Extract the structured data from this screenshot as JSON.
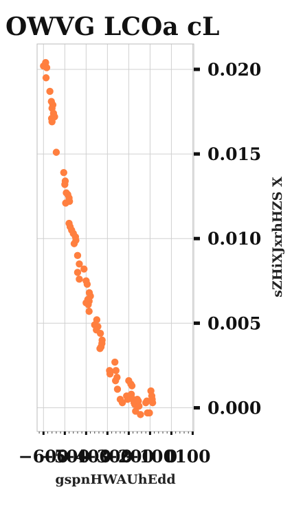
{
  "chart_data": {
    "type": "scatter",
    "title": "OWVG LCOa cL",
    "xlabel": "gspnHWAUhEdd",
    "ylabel": "sZHiXJxrhHZS X",
    "xlim": [
      -630,
      105
    ],
    "ylim": [
      -0.0014,
      0.0215
    ],
    "x_ticks": [
      -600,
      -500,
      -400,
      -300,
      -200,
      -100,
      0,
      100
    ],
    "x_tick_labels": [
      "−600",
      "−500",
      "−400",
      "−300",
      "−200",
      "−100",
      "0",
      "100"
    ],
    "y_ticks": [
      0.0,
      0.005,
      0.01,
      0.015,
      0.02
    ],
    "y_tick_labels": [
      "0.000",
      "0.005",
      "0.010",
      "0.015",
      "0.020"
    ],
    "y_axis_side": "right",
    "grid": true,
    "marker_color": "#ff7f3f",
    "points": [
      [
        -600,
        0.0202
      ],
      [
        -590,
        0.0204
      ],
      [
        -585,
        0.0201
      ],
      [
        -588,
        0.0195
      ],
      [
        -570,
        0.0187
      ],
      [
        -563,
        0.0181
      ],
      [
        -556,
        0.0179
      ],
      [
        -560,
        0.0177
      ],
      [
        -553,
        0.0174
      ],
      [
        -548,
        0.0172
      ],
      [
        -562,
        0.0171
      ],
      [
        -560,
        0.0169
      ],
      [
        -540,
        0.0151
      ],
      [
        -505,
        0.0139
      ],
      [
        -498,
        0.0134
      ],
      [
        -500,
        0.0132
      ],
      [
        -493,
        0.0127
      ],
      [
        -486,
        0.0126
      ],
      [
        -480,
        0.0124
      ],
      [
        -478,
        0.0122
      ],
      [
        -496,
        0.0121
      ],
      [
        -480,
        0.0109
      ],
      [
        -475,
        0.0107
      ],
      [
        -468,
        0.0105
      ],
      [
        -460,
        0.0103
      ],
      [
        -450,
        0.0101
      ],
      [
        -448,
        0.0099
      ],
      [
        -456,
        0.0097
      ],
      [
        -440,
        0.009
      ],
      [
        -432,
        0.0085
      ],
      [
        -440,
        0.008
      ],
      [
        -432,
        0.0076
      ],
      [
        -410,
        0.0082
      ],
      [
        -400,
        0.0075
      ],
      [
        -395,
        0.0073
      ],
      [
        -385,
        0.0068
      ],
      [
        -380,
        0.0066
      ],
      [
        -392,
        0.0064
      ],
      [
        -386,
        0.0063
      ],
      [
        -400,
        0.0062
      ],
      [
        -390,
        0.0061
      ],
      [
        -386,
        0.0057
      ],
      [
        -360,
        0.0049
      ],
      [
        -350,
        0.0052
      ],
      [
        -345,
        0.0048
      ],
      [
        -352,
        0.0046
      ],
      [
        -333,
        0.0044
      ],
      [
        -325,
        0.004
      ],
      [
        -326,
        0.0038
      ],
      [
        -335,
        0.0035
      ],
      [
        -330,
        0.0036
      ],
      [
        -290,
        0.0022
      ],
      [
        -288,
        0.002
      ],
      [
        -265,
        0.0027
      ],
      [
        -260,
        0.0022
      ],
      [
        -255,
        0.0018
      ],
      [
        -262,
        0.0016
      ],
      [
        -253,
        0.0011
      ],
      [
        -240,
        0.0005
      ],
      [
        -230,
        0.0003
      ],
      [
        -210,
        0.0007
      ],
      [
        -205,
        0.0005
      ],
      [
        -200,
        0.0016
      ],
      [
        -190,
        0.0014
      ],
      [
        -185,
        0.0013
      ],
      [
        -188,
        0.0008
      ],
      [
        -180,
        0.0005
      ],
      [
        -175,
        0.0003
      ],
      [
        -172,
        0.0002
      ],
      [
        -168,
        -0.0002
      ],
      [
        -160,
        0.0005
      ],
      [
        -155,
        0.0004
      ],
      [
        -152,
        0.0001
      ],
      [
        -145,
        -0.0004
      ],
      [
        -120,
        0.0003
      ],
      [
        -115,
        0.0004
      ],
      [
        -112,
        -0.0003
      ],
      [
        -103,
        -0.0003
      ],
      [
        -96,
        0.001
      ],
      [
        -92,
        0.0007
      ],
      [
        -90,
        0.0005
      ],
      [
        -88,
        0.0003
      ]
    ]
  }
}
